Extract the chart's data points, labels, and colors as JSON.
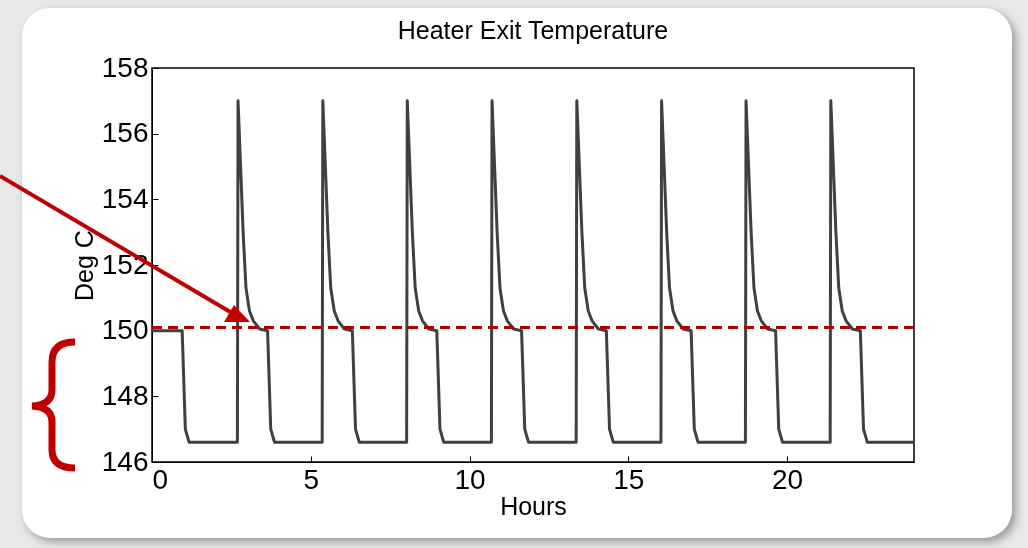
{
  "chart_data": {
    "type": "line",
    "title": "Heater Exit Temperature",
    "xlabel": "Hours",
    "ylabel": "Deg C",
    "xlim": [
      0,
      24
    ],
    "xticks": [
      0,
      5,
      10,
      15,
      20
    ],
    "ylim": [
      146,
      158
    ],
    "yticks": [
      146,
      148,
      150,
      152,
      154,
      156,
      158
    ],
    "grid": false,
    "marker": "none",
    "line_style": "solid",
    "series": [
      {
        "color": "#404040",
        "x": [
          0,
          0.95,
          1.05,
          1.17,
          2.69,
          2.71,
          2.75,
          2.81,
          2.87,
          2.96,
          3.07,
          3.19,
          3.39,
          3.64,
          3.74,
          3.86,
          5.36,
          5.38,
          5.42,
          5.48,
          5.54,
          5.63,
          5.74,
          5.86,
          6.06,
          6.31,
          6.41,
          6.53,
          8.02,
          8.04,
          8.08,
          8.14,
          8.2,
          8.29,
          8.4,
          8.52,
          8.72,
          8.97,
          9.07,
          9.19,
          10.69,
          10.71,
          10.75,
          10.81,
          10.87,
          10.96,
          11.07,
          11.19,
          11.39,
          11.64,
          11.74,
          11.86,
          13.36,
          13.38,
          13.42,
          13.48,
          13.54,
          13.63,
          13.74,
          13.86,
          14.06,
          14.31,
          14.41,
          14.53,
          16.03,
          16.05,
          16.09,
          16.15,
          16.21,
          16.3,
          16.41,
          16.53,
          16.73,
          16.98,
          17.08,
          17.2,
          18.69,
          18.71,
          18.75,
          18.81,
          18.87,
          18.96,
          19.07,
          19.19,
          19.39,
          19.64,
          19.74,
          19.86,
          21.36,
          21.38,
          21.42,
          21.48,
          21.54,
          21.63,
          21.74,
          21.86,
          22.06,
          22.31,
          22.41,
          22.53,
          24
        ],
        "values": [
          150,
          150,
          147,
          146.6,
          146.6,
          157,
          156,
          154.5,
          153,
          151.3,
          150.6,
          150.3,
          150.05,
          150,
          147,
          146.6,
          146.6,
          157,
          156,
          154.5,
          153,
          151.3,
          150.6,
          150.3,
          150.05,
          150,
          147,
          146.6,
          146.6,
          157,
          156,
          154.5,
          153,
          151.3,
          150.6,
          150.3,
          150.05,
          150,
          147,
          146.6,
          146.6,
          157,
          156,
          154.5,
          153,
          151.3,
          150.6,
          150.3,
          150.05,
          150,
          147,
          146.6,
          146.6,
          157,
          156,
          154.5,
          153,
          151.3,
          150.6,
          150.3,
          150.05,
          150,
          147,
          146.6,
          146.6,
          157,
          156,
          154.5,
          153,
          151.3,
          150.6,
          150.3,
          150.05,
          150,
          147,
          146.6,
          146.6,
          157,
          156,
          154.5,
          153,
          151.3,
          150.6,
          150.3,
          150.05,
          150,
          147,
          146.6,
          146.6,
          157,
          156,
          154.5,
          153,
          151.3,
          150.6,
          150.3,
          150.05,
          150,
          147,
          146.6,
          146.6
        ]
      }
    ],
    "ref_lines": [
      {
        "axis": "y",
        "value": 150.1,
        "color": "#b00000",
        "line_style": "dashed"
      }
    ]
  }
}
